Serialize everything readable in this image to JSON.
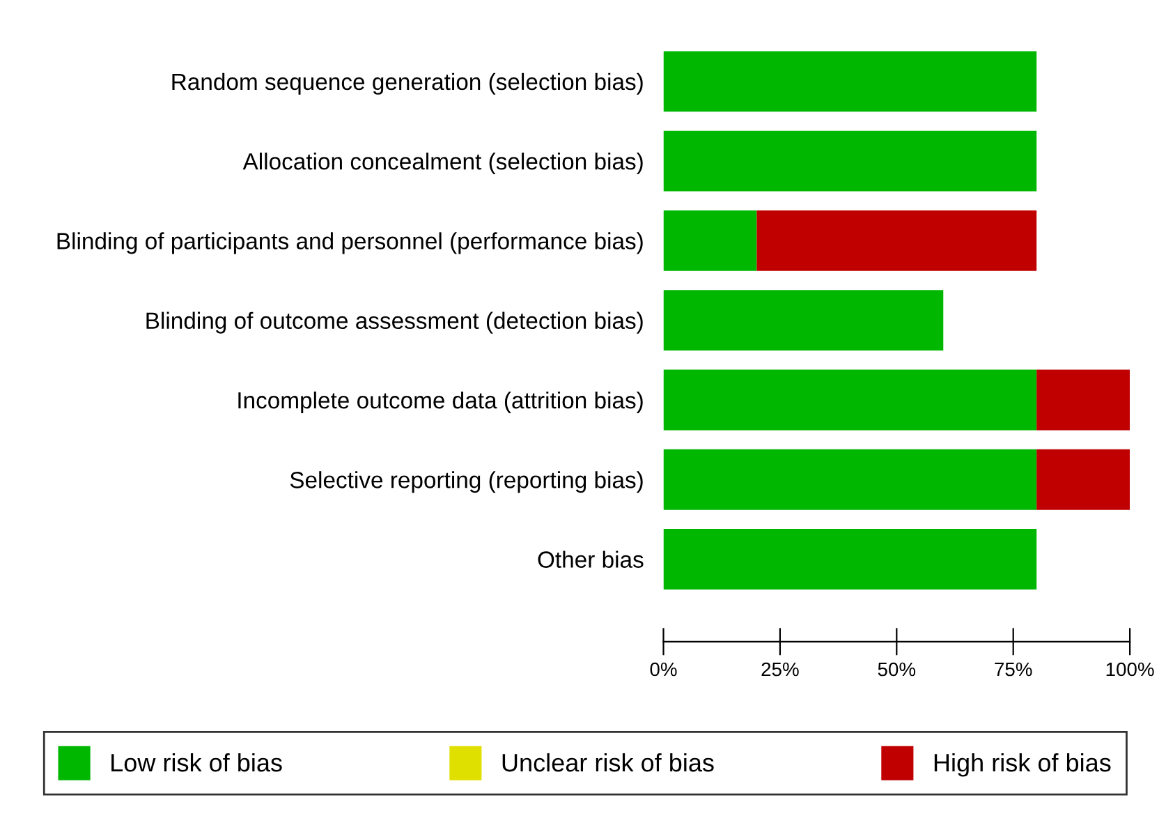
{
  "chart_data": {
    "type": "bar",
    "orientation": "horizontal",
    "stacked": true,
    "categories": [
      "Random sequence generation (selection bias)",
      "Allocation concealment (selection bias)",
      "Blinding of participants and personnel (performance bias)",
      "Blinding of outcome assessment (detection bias)",
      "Incomplete outcome data (attrition bias)",
      "Selective reporting (reporting bias)",
      "Other bias"
    ],
    "series": [
      {
        "name": "Low risk of bias",
        "color": "#00b700",
        "values": [
          80,
          80,
          20,
          60,
          80,
          80,
          80
        ]
      },
      {
        "name": "Unclear risk of bias",
        "color": "#e0e000",
        "values": [
          0,
          0,
          0,
          0,
          0,
          0,
          0
        ]
      },
      {
        "name": "High risk of bias",
        "color": "#c00000",
        "values": [
          0,
          0,
          60,
          0,
          20,
          20,
          0
        ]
      }
    ],
    "xlim": [
      0,
      100
    ],
    "xticks": [
      {
        "value": 0,
        "label": "0%"
      },
      {
        "value": 25,
        "label": "25%"
      },
      {
        "value": 50,
        "label": "50%"
      },
      {
        "value": 75,
        "label": "75%"
      },
      {
        "value": 100,
        "label": "100%"
      }
    ],
    "legend": "bottom",
    "grid": false
  }
}
